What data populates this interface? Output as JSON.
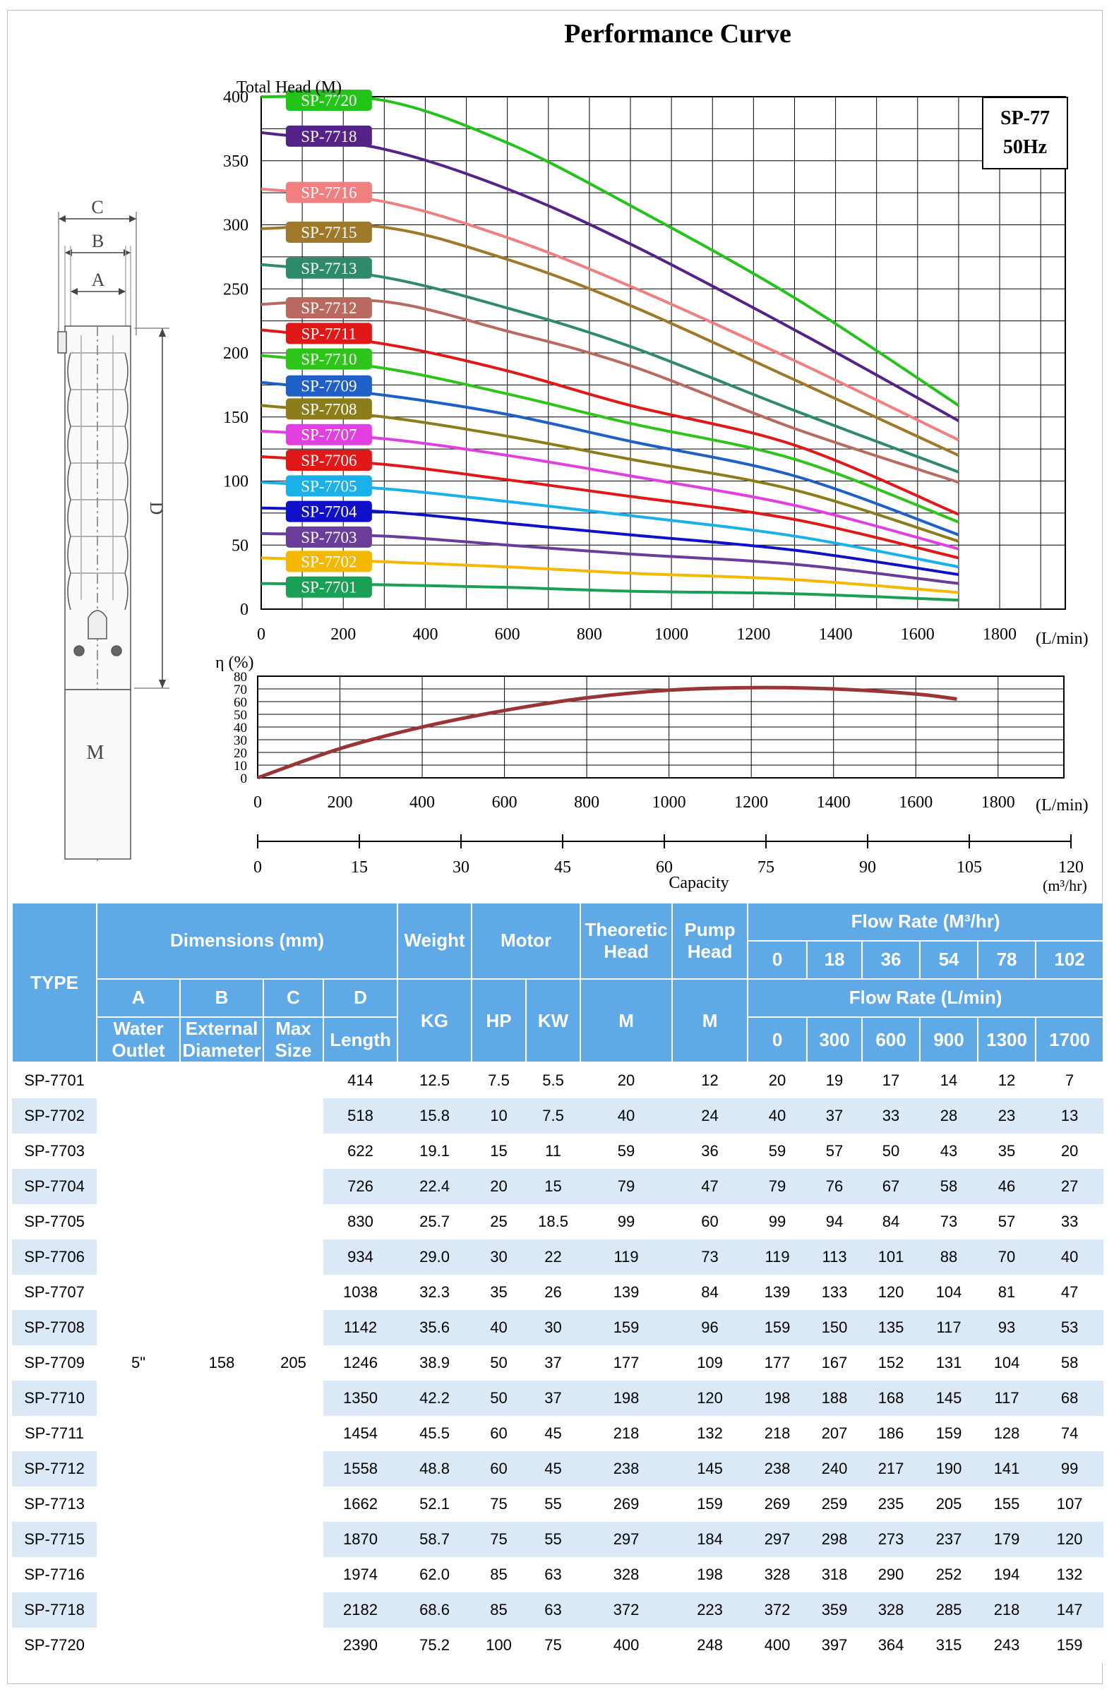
{
  "header": {
    "title": "Performance Curve"
  },
  "model_box": {
    "line1": "SP-77",
    "line2": "50Hz"
  },
  "head_chart": {
    "ylabel": "Total Head (M)",
    "x_unit": "(L/min)",
    "x_ticks": [
      0,
      200,
      400,
      600,
      800,
      1000,
      1200,
      1400,
      1600,
      1800
    ],
    "y_ticks": [
      0,
      50,
      100,
      150,
      200,
      250,
      300,
      350,
      400
    ]
  },
  "eff_chart": {
    "ylabel": "η (%)",
    "x_unit": "(L/min)",
    "x_ticks": [
      0,
      200,
      400,
      600,
      800,
      1000,
      1200,
      1400,
      1600,
      1800
    ],
    "y_ticks": [
      0,
      10,
      20,
      30,
      40,
      50,
      60,
      70,
      80
    ]
  },
  "capacity_axis": {
    "label": "Capacity",
    "unit": "(m³/hr)",
    "ticks": [
      0,
      15,
      30,
      45,
      60,
      75,
      90,
      105,
      120
    ]
  },
  "drawing_labels": {
    "c": "C",
    "b": "B",
    "a": "A",
    "d": "D",
    "m": "M"
  },
  "chart_data": [
    {
      "type": "line",
      "title": "Performance Curve",
      "ylabel": "Total Head (M)",
      "xlabel": "(L/min)",
      "xlim": [
        0,
        1960
      ],
      "ylim": [
        0,
        400
      ],
      "x": [
        0,
        300,
        600,
        900,
        1300,
        1700
      ],
      "series": [
        {
          "name": "SP-7701",
          "color": "#1aa055",
          "values": [
            20,
            19,
            17,
            14,
            12,
            7
          ]
        },
        {
          "name": "SP-7702",
          "color": "#f5b800",
          "values": [
            40,
            37,
            33,
            28,
            23,
            13
          ]
        },
        {
          "name": "SP-7703",
          "color": "#6a3d9a",
          "values": [
            59,
            57,
            50,
            43,
            35,
            20
          ]
        },
        {
          "name": "SP-7704",
          "color": "#1010c8",
          "values": [
            79,
            76,
            67,
            58,
            46,
            27
          ]
        },
        {
          "name": "SP-7705",
          "color": "#1ab0e8",
          "values": [
            99,
            94,
            84,
            73,
            57,
            33
          ]
        },
        {
          "name": "SP-7706",
          "color": "#e01818",
          "values": [
            119,
            113,
            101,
            88,
            70,
            40
          ]
        },
        {
          "name": "SP-7707",
          "color": "#e040e0",
          "values": [
            139,
            133,
            120,
            104,
            81,
            47
          ]
        },
        {
          "name": "SP-7708",
          "color": "#8b7d1a",
          "values": [
            159,
            150,
            135,
            117,
            93,
            53
          ]
        },
        {
          "name": "SP-7709",
          "color": "#1f5fc8",
          "values": [
            177,
            167,
            152,
            131,
            104,
            58
          ]
        },
        {
          "name": "SP-7710",
          "color": "#2ec41a",
          "values": [
            198,
            188,
            168,
            145,
            117,
            68
          ]
        },
        {
          "name": "SP-7711",
          "color": "#e01818",
          "values": [
            218,
            207,
            186,
            159,
            128,
            74
          ]
        },
        {
          "name": "SP-7712",
          "color": "#b86a60",
          "values": [
            238,
            240,
            217,
            190,
            141,
            99
          ]
        },
        {
          "name": "SP-7713",
          "color": "#2e8b6a",
          "values": [
            269,
            259,
            235,
            205,
            155,
            107
          ]
        },
        {
          "name": "SP-7715",
          "color": "#a0782a",
          "values": [
            297,
            298,
            273,
            237,
            179,
            120
          ]
        },
        {
          "name": "SP-7716",
          "color": "#f08080",
          "values": [
            328,
            318,
            290,
            252,
            194,
            132
          ]
        },
        {
          "name": "SP-7718",
          "color": "#552288",
          "values": [
            372,
            359,
            328,
            285,
            218,
            147
          ]
        },
        {
          "name": "SP-7720",
          "color": "#22c41a",
          "values": [
            400,
            397,
            364,
            315,
            243,
            159
          ]
        }
      ]
    },
    {
      "type": "line",
      "ylabel": "η (%)",
      "xlabel": "(L/min)",
      "xlim": [
        0,
        1960
      ],
      "ylim": [
        0,
        80
      ],
      "x": [
        0,
        200,
        400,
        600,
        800,
        1000,
        1200,
        1400,
        1600,
        1700
      ],
      "series": [
        {
          "color": "#9b3535",
          "values": [
            0,
            23,
            40,
            53,
            63,
            69,
            71,
            70,
            66,
            62
          ]
        }
      ]
    }
  ],
  "table": {
    "top_headers": {
      "type": "TYPE",
      "dimensions": "Dimensions (mm)",
      "weight": "Weight",
      "motor": "Motor",
      "theoretic_head": "Theoretic Head",
      "pump_head": "Pump Head",
      "flow_m3": "Flow Rate   (M³/hr)",
      "flow_lmin": "Flow Rate   (L/min)"
    },
    "dim_letters": [
      "A",
      "B",
      "C",
      "D"
    ],
    "dim_names": [
      "Water Outlet",
      "External Diameter",
      "Max Size",
      "Length"
    ],
    "units": {
      "kg": "KG",
      "hp": "HP",
      "kw": "KW",
      "m1": "M",
      "m2": "M"
    },
    "flow_m3_values": [
      "0",
      "18",
      "36",
      "54",
      "78",
      "102"
    ],
    "flow_lmin_values": [
      "0",
      "300",
      "600",
      "900",
      "1300",
      "1700"
    ],
    "common": {
      "a": "5\"",
      "b": "158",
      "c": "205"
    },
    "rows": [
      {
        "type": "SP-7701",
        "d": "414",
        "kg": "12.5",
        "hp": "7.5",
        "kw": "5.5",
        "th": "20",
        "ph": "12",
        "flow": [
          "20",
          "19",
          "17",
          "14",
          "12",
          "7"
        ]
      },
      {
        "type": "SP-7702",
        "d": "518",
        "kg": "15.8",
        "hp": "10",
        "kw": "7.5",
        "th": "40",
        "ph": "24",
        "flow": [
          "40",
          "37",
          "33",
          "28",
          "23",
          "13"
        ]
      },
      {
        "type": "SP-7703",
        "d": "622",
        "kg": "19.1",
        "hp": "15",
        "kw": "11",
        "th": "59",
        "ph": "36",
        "flow": [
          "59",
          "57",
          "50",
          "43",
          "35",
          "20"
        ]
      },
      {
        "type": "SP-7704",
        "d": "726",
        "kg": "22.4",
        "hp": "20",
        "kw": "15",
        "th": "79",
        "ph": "47",
        "flow": [
          "79",
          "76",
          "67",
          "58",
          "46",
          "27"
        ]
      },
      {
        "type": "SP-7705",
        "d": "830",
        "kg": "25.7",
        "hp": "25",
        "kw": "18.5",
        "th": "99",
        "ph": "60",
        "flow": [
          "99",
          "94",
          "84",
          "73",
          "57",
          "33"
        ]
      },
      {
        "type": "SP-7706",
        "d": "934",
        "kg": "29.0",
        "hp": "30",
        "kw": "22",
        "th": "119",
        "ph": "73",
        "flow": [
          "119",
          "113",
          "101",
          "88",
          "70",
          "40"
        ]
      },
      {
        "type": "SP-7707",
        "d": "1038",
        "kg": "32.3",
        "hp": "35",
        "kw": "26",
        "th": "139",
        "ph": "84",
        "flow": [
          "139",
          "133",
          "120",
          "104",
          "81",
          "47"
        ]
      },
      {
        "type": "SP-7708",
        "d": "1142",
        "kg": "35.6",
        "hp": "40",
        "kw": "30",
        "th": "159",
        "ph": "96",
        "flow": [
          "159",
          "150",
          "135",
          "117",
          "93",
          "53"
        ]
      },
      {
        "type": "SP-7709",
        "d": "1246",
        "kg": "38.9",
        "hp": "50",
        "kw": "37",
        "th": "177",
        "ph": "109",
        "flow": [
          "177",
          "167",
          "152",
          "131",
          "104",
          "58"
        ]
      },
      {
        "type": "SP-7710",
        "d": "1350",
        "kg": "42.2",
        "hp": "50",
        "kw": "37",
        "th": "198",
        "ph": "120",
        "flow": [
          "198",
          "188",
          "168",
          "145",
          "117",
          "68"
        ]
      },
      {
        "type": "SP-7711",
        "d": "1454",
        "kg": "45.5",
        "hp": "60",
        "kw": "45",
        "th": "218",
        "ph": "132",
        "flow": [
          "218",
          "207",
          "186",
          "159",
          "128",
          "74"
        ]
      },
      {
        "type": "SP-7712",
        "d": "1558",
        "kg": "48.8",
        "hp": "60",
        "kw": "45",
        "th": "238",
        "ph": "145",
        "flow": [
          "238",
          "240",
          "217",
          "190",
          "141",
          "99"
        ]
      },
      {
        "type": "SP-7713",
        "d": "1662",
        "kg": "52.1",
        "hp": "75",
        "kw": "55",
        "th": "269",
        "ph": "159",
        "flow": [
          "269",
          "259",
          "235",
          "205",
          "155",
          "107"
        ]
      },
      {
        "type": "SP-7715",
        "d": "1870",
        "kg": "58.7",
        "hp": "75",
        "kw": "55",
        "th": "297",
        "ph": "184",
        "flow": [
          "297",
          "298",
          "273",
          "237",
          "179",
          "120"
        ]
      },
      {
        "type": "SP-7716",
        "d": "1974",
        "kg": "62.0",
        "hp": "85",
        "kw": "63",
        "th": "328",
        "ph": "198",
        "flow": [
          "328",
          "318",
          "290",
          "252",
          "194",
          "132"
        ]
      },
      {
        "type": "SP-7718",
        "d": "2182",
        "kg": "68.6",
        "hp": "85",
        "kw": "63",
        "th": "372",
        "ph": "223",
        "flow": [
          "372",
          "359",
          "328",
          "285",
          "218",
          "147"
        ]
      },
      {
        "type": "SP-7720",
        "d": "2390",
        "kg": "75.2",
        "hp": "100",
        "kw": "75",
        "th": "400",
        "ph": "248",
        "flow": [
          "400",
          "397",
          "364",
          "315",
          "243",
          "159"
        ]
      }
    ]
  }
}
